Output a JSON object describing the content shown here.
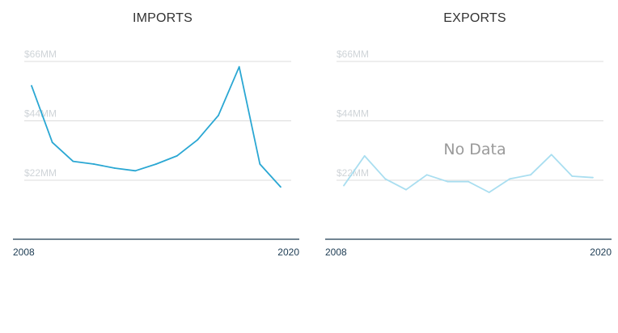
{
  "chart_data": [
    {
      "type": "line",
      "title": "IMPORTS",
      "x": [
        2008,
        2009,
        2010,
        2011,
        2012,
        2013,
        2014,
        2015,
        2016,
        2017,
        2018,
        2019,
        2020
      ],
      "series": [
        {
          "values": [
            57,
            36,
            29,
            28,
            26.5,
            25.5,
            28,
            31,
            37,
            46,
            64,
            28,
            19.5
          ]
        }
      ],
      "ylim": [
        0,
        66
      ],
      "y_ticks": [
        22,
        44,
        66
      ],
      "y_tick_labels": [
        "$22MM",
        "$44MM",
        "$66MM"
      ],
      "x_tick_labels": [
        "2008",
        "2020"
      ],
      "grid": true,
      "color": "#2aa7d3"
    },
    {
      "type": "line",
      "title": "EXPORTS",
      "x": [
        2008,
        2009,
        2010,
        2011,
        2012,
        2013,
        2014,
        2015,
        2016,
        2017,
        2018,
        2019,
        2020
      ],
      "series": [
        {
          "values": [
            20,
            31,
            22.5,
            18.5,
            24,
            21.5,
            21.5,
            17.5,
            22.5,
            24,
            31.5,
            23.5,
            23
          ]
        }
      ],
      "ylim": [
        0,
        66
      ],
      "y_ticks": [
        22,
        44,
        66
      ],
      "y_tick_labels": [
        "$22MM",
        "$44MM",
        "$66MM"
      ],
      "x_tick_labels": [
        "2008",
        "2020"
      ],
      "grid": true,
      "color": "#a9def0",
      "annotation": "No Data"
    }
  ]
}
